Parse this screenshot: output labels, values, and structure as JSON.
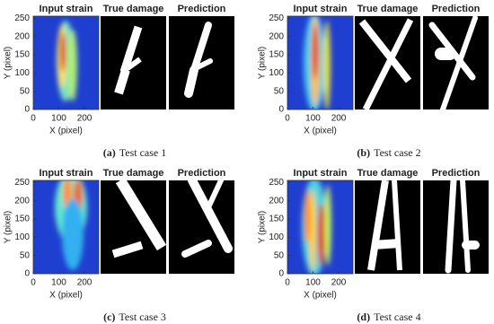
{
  "panel_titles": [
    "Input strain",
    "True damage",
    "Prediction"
  ],
  "x_label": "X (pixel)",
  "y_label": "Y (pixel)",
  "xlim": [
    0,
    256
  ],
  "ylim": [
    0,
    256
  ],
  "xticks": [
    0,
    100,
    200
  ],
  "yticks": [
    0,
    50,
    100,
    150,
    200,
    250
  ],
  "subfigures": [
    {
      "label": "(a)",
      "caption": "Test case 1"
    },
    {
      "label": "(b)",
      "caption": "Test case 2"
    },
    {
      "label": "(c)",
      "caption": "Test case 3"
    },
    {
      "label": "(d)",
      "caption": "Test case 4"
    }
  ]
}
